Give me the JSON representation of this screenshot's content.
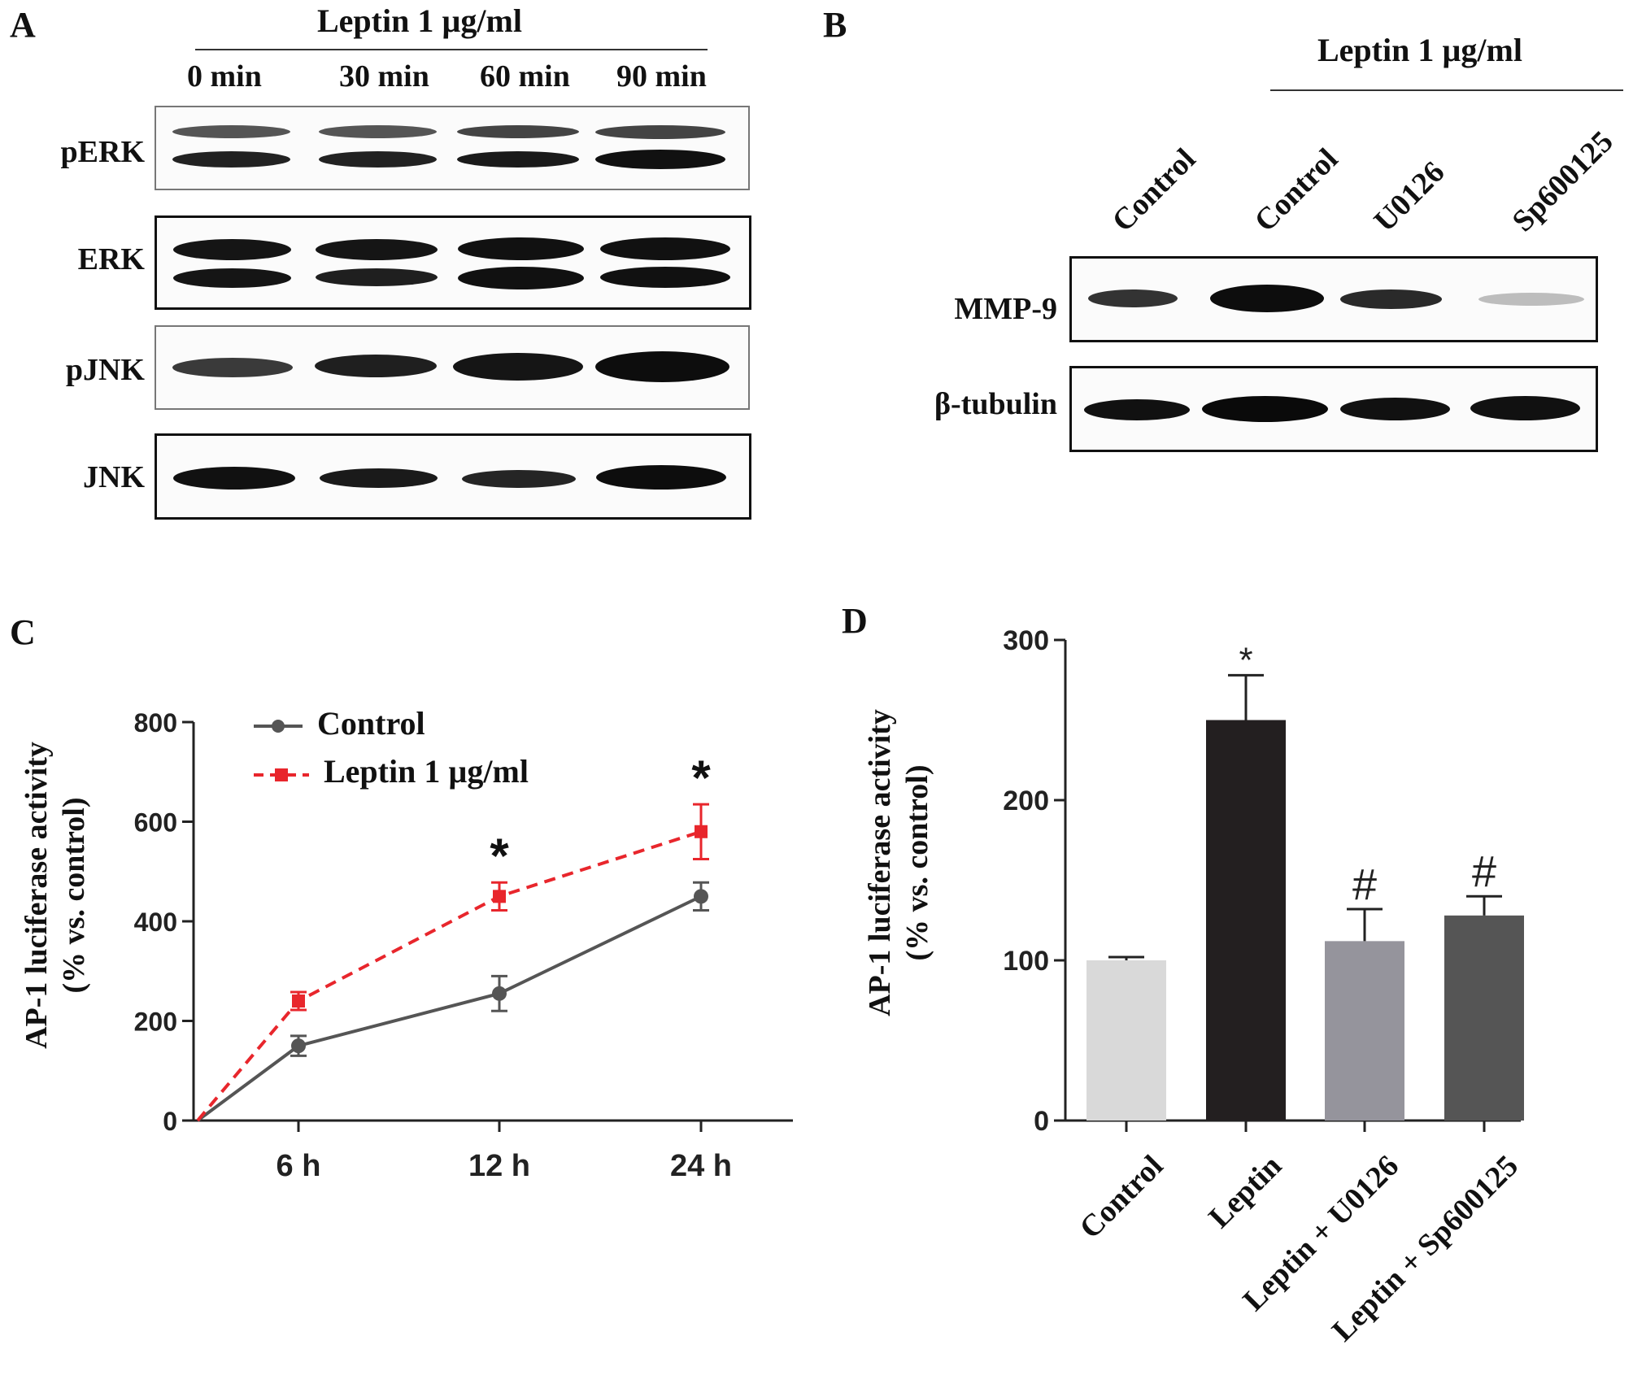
{
  "panels": {
    "a": "A",
    "b": "B",
    "c": "C",
    "d": "D"
  },
  "panelA": {
    "header": "Leptin 1 µg/ml",
    "times": [
      "0 min",
      "30 min",
      "60 min",
      "90 min"
    ],
    "rows": [
      "pERK",
      "ERK",
      "pJNK",
      "JNK"
    ]
  },
  "panelB": {
    "header": "Leptin 1 µg/ml",
    "lanes": [
      "Control",
      "Control",
      "U0126",
      "Sp600125"
    ],
    "rows": [
      "MMP-9",
      "β-tubulin"
    ]
  },
  "chart_data": [
    {
      "type": "line",
      "panel": "C",
      "ylabel": "AP-1 luciferase activity (% vs. control)",
      "ylabel_line1": "AP-1 luciferase activity",
      "ylabel_line2": "(% vs. control)",
      "x": [
        0,
        6,
        12,
        24
      ],
      "xtick_labels": [
        "6 h",
        "12 h",
        "24 h"
      ],
      "ylim": [
        0,
        800
      ],
      "yticks": [
        0,
        200,
        400,
        600,
        800
      ],
      "legend_position": "top-left",
      "series": [
        {
          "name": "Control",
          "values": [
            0,
            150,
            255,
            450
          ],
          "errors": [
            0,
            20,
            35,
            28
          ],
          "color": "#555555",
          "style": "solid",
          "marker": "circle"
        },
        {
          "name": "Leptin 1 µg/ml",
          "values": [
            0,
            240,
            450,
            580
          ],
          "errors": [
            0,
            18,
            28,
            55
          ],
          "color": "#e8262c",
          "style": "dashed",
          "marker": "square"
        }
      ],
      "annotations": [
        {
          "x": 12,
          "text": "*"
        },
        {
          "x": 24,
          "text": "*"
        }
      ]
    },
    {
      "type": "bar",
      "panel": "D",
      "ylabel": "AP-1 luciferase activity (% vs. control)",
      "ylabel_line1": "AP-1 luciferase activity",
      "ylabel_line2": "(% vs. control)",
      "categories": [
        "Control",
        "Leptin",
        "Leptin + U0126",
        "Leptin + Sp600125"
      ],
      "values": [
        100,
        250,
        112,
        128
      ],
      "errors": [
        2,
        28,
        20,
        12
      ],
      "colors": [
        "#d9d9d9",
        "#231f20",
        "#95949c",
        "#555555"
      ],
      "ylim": [
        0,
        300
      ],
      "yticks": [
        0,
        100,
        200,
        300
      ],
      "annotations": [
        "",
        "*",
        "#",
        "#"
      ]
    }
  ]
}
